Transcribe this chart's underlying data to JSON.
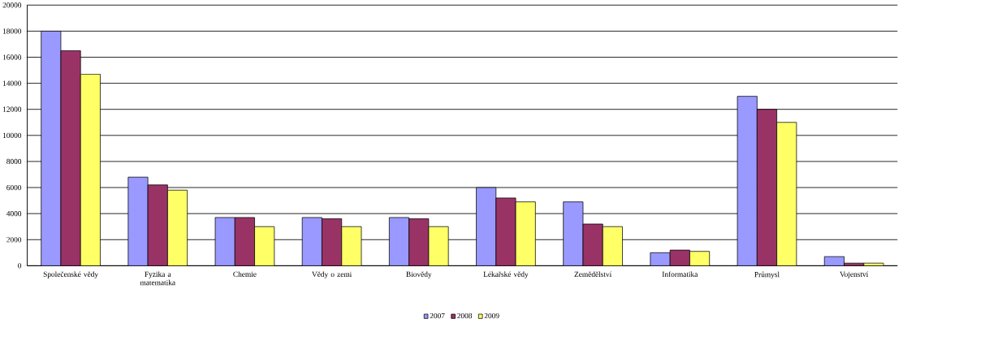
{
  "chart_data": {
    "type": "bar",
    "categories": [
      "Společenské vědy",
      "Fyzika a matematika",
      "Chemie",
      "Vědy o zemi",
      "Biovědy",
      "Lékařské vědy",
      "Zemědělství",
      "Informatika",
      "Průmysl",
      "Vojenství"
    ],
    "series": [
      {
        "name": "2007",
        "color": "#9999ff",
        "values": [
          18000,
          6800,
          3700,
          3700,
          3700,
          6000,
          4900,
          1000,
          13000,
          700
        ]
      },
      {
        "name": "2008",
        "color": "#993366",
        "values": [
          16500,
          6200,
          3700,
          3600,
          3600,
          5200,
          3200,
          1200,
          12000,
          200
        ]
      },
      {
        "name": "2009",
        "color": "#ffff66",
        "values": [
          14700,
          5800,
          3000,
          3000,
          3000,
          4900,
          3000,
          1100,
          11000,
          200
        ]
      }
    ],
    "ylim": [
      0,
      20000
    ],
    "yticks": [
      0,
      2000,
      4000,
      6000,
      8000,
      10000,
      12000,
      14000,
      16000,
      18000,
      20000
    ],
    "grid": "y",
    "legend": "bottom"
  }
}
